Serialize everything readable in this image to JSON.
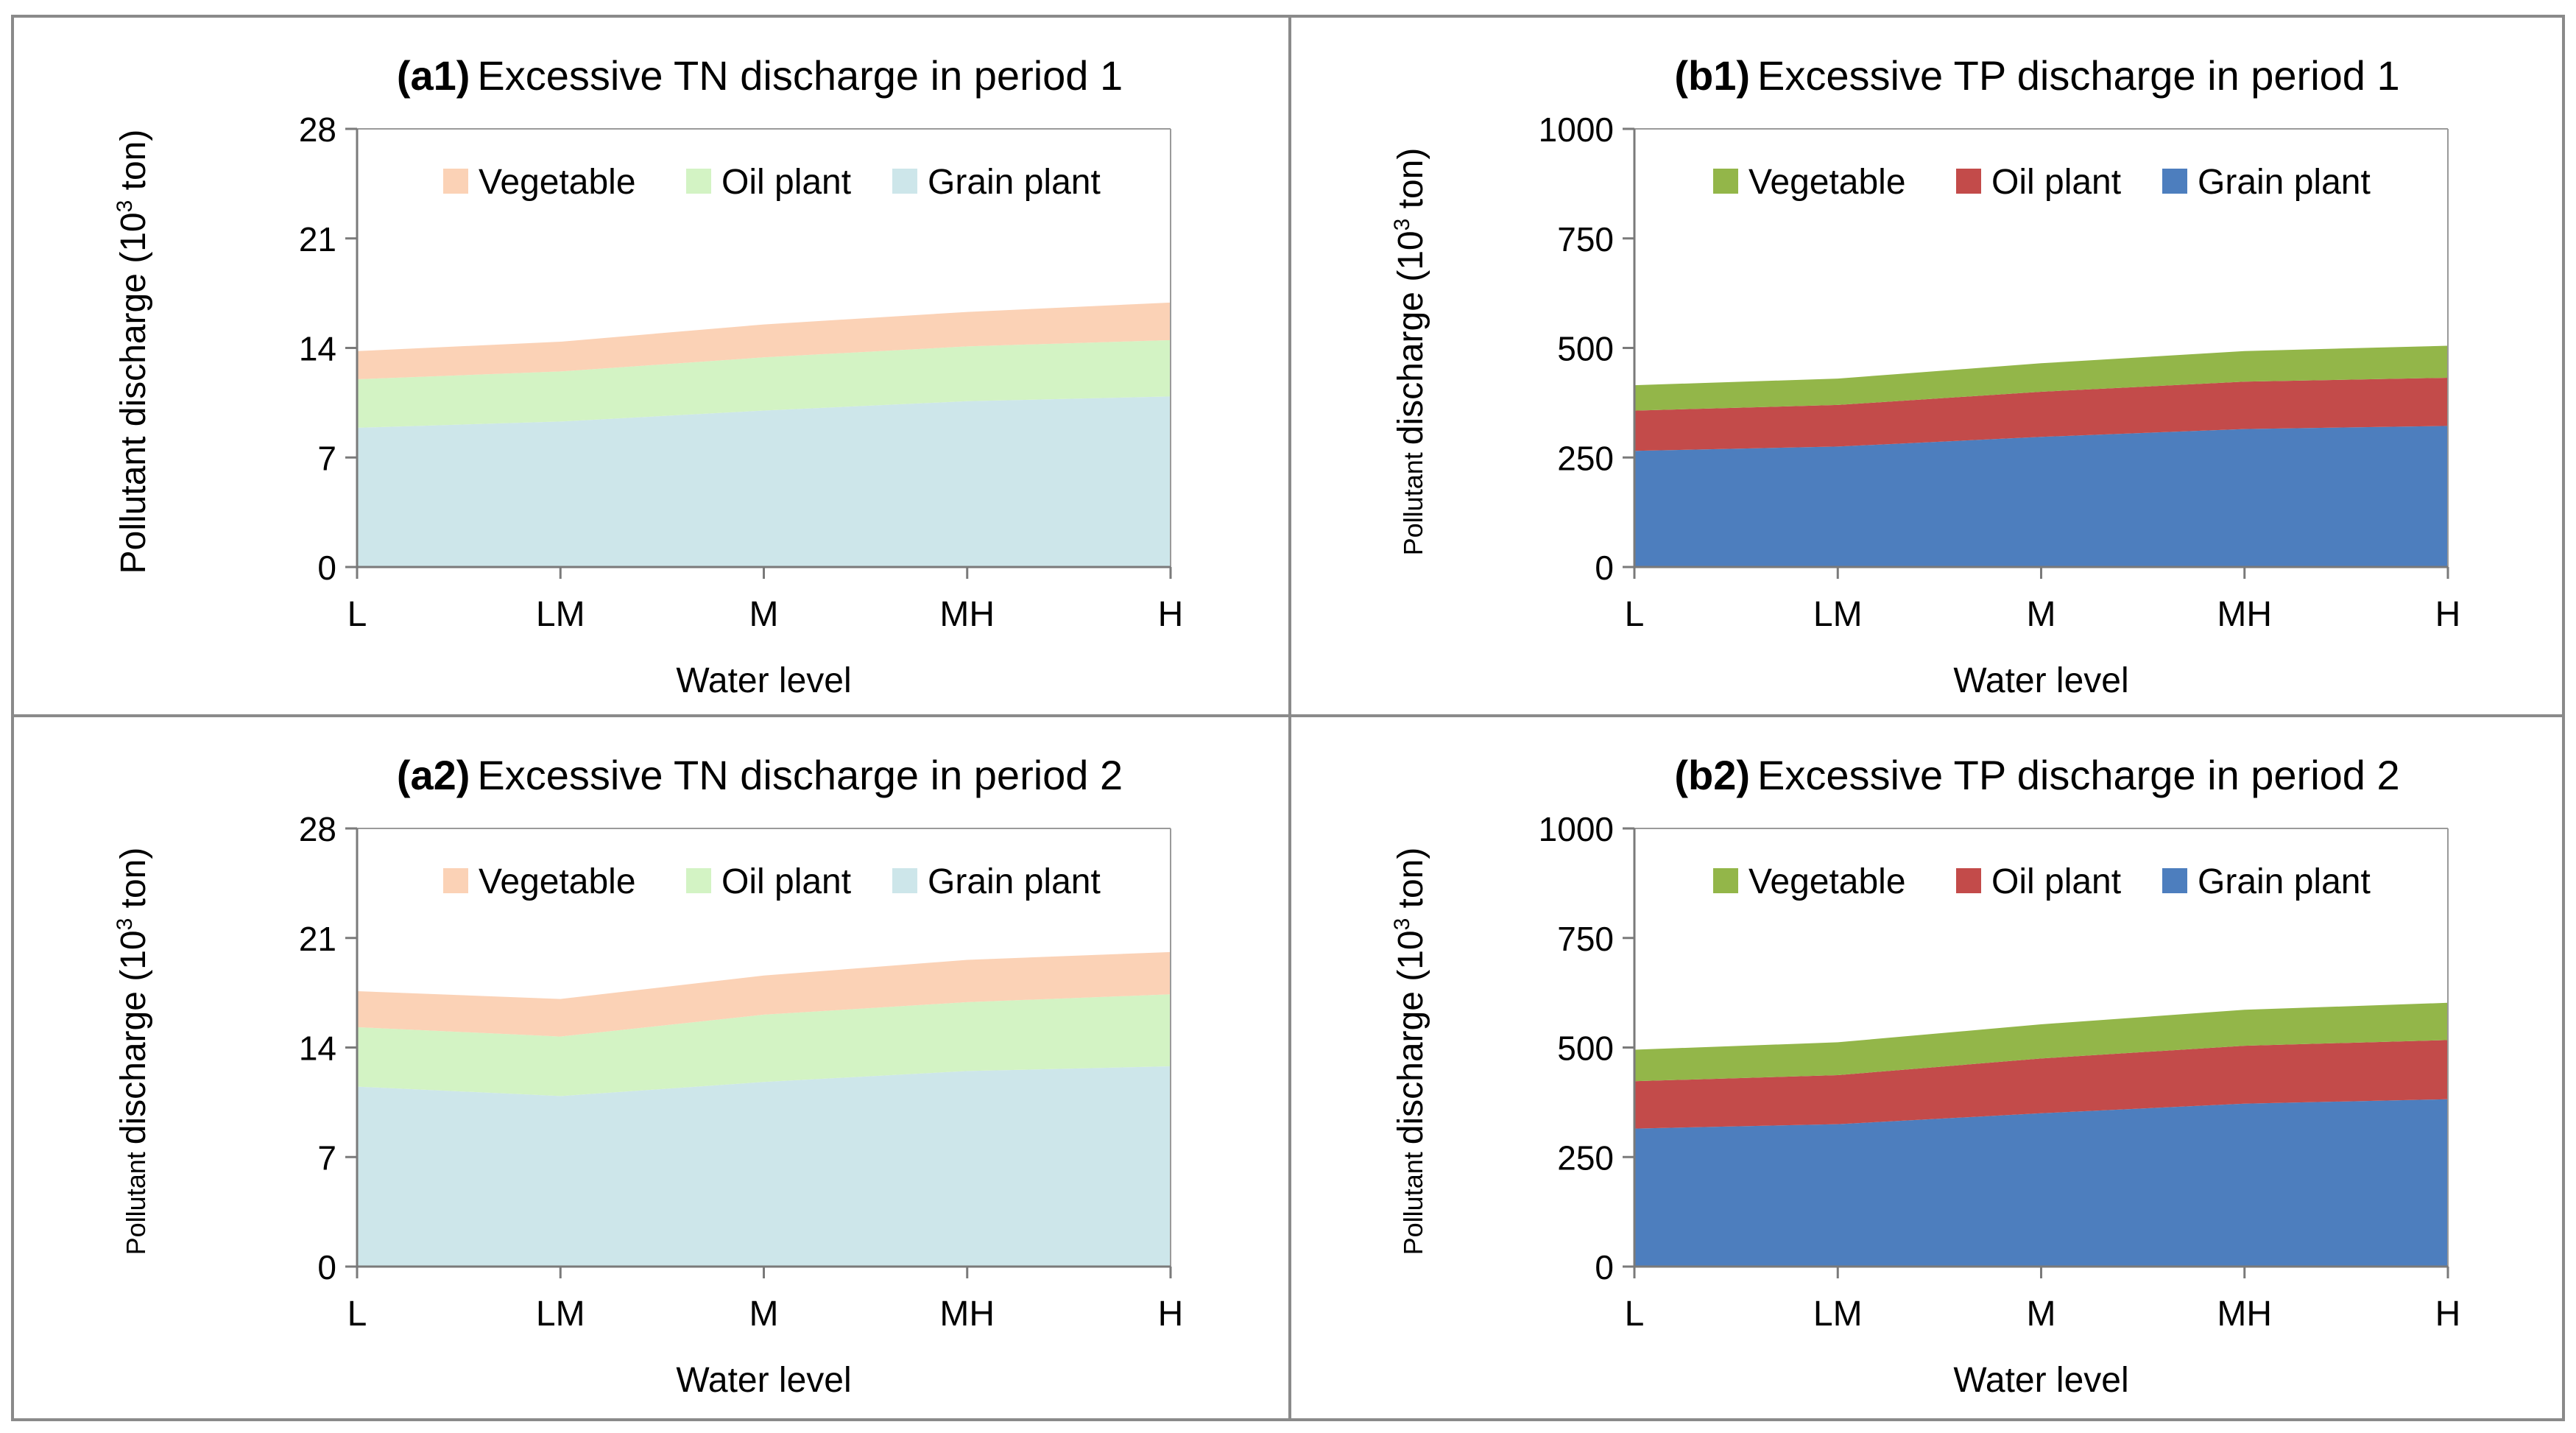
{
  "colors": {
    "green_palette": {
      "vegetable": "#fbd2b6",
      "oil": "#d3f3c4",
      "grain": "#cde6ea"
    },
    "bold_palette": {
      "vegetable": "#93b649",
      "oil": "#c34b4a",
      "grain": "#4d7ebe"
    },
    "frame": "#8a8a8a"
  },
  "chart_data": [
    {
      "id": "a1",
      "type": "area",
      "stacked": true,
      "title_prefix": "(a1)",
      "title": "Excessive TN discharge in period 1",
      "xlabel": "Water level",
      "ylabel_main": "Pollutant discharge",
      "ylabel_unit": "(10",
      "ylabel_sup": "3",
      "ylabel_tail": " ton)",
      "ylabel_small": false,
      "categories": [
        "L",
        "LM",
        "M",
        "MH",
        "H"
      ],
      "ylim": [
        0,
        28
      ],
      "yticks": [
        "0",
        "7",
        "14",
        "21",
        "28"
      ],
      "yticks_values": [
        0,
        7,
        14,
        21,
        28
      ],
      "palette": "green_palette",
      "series": [
        {
          "name": "Grain plant",
          "key": "grain",
          "values": [
            8.9,
            9.3,
            10.0,
            10.6,
            10.9
          ]
        },
        {
          "name": "Oil plant",
          "key": "oil",
          "values": [
            3.1,
            3.2,
            3.4,
            3.5,
            3.6
          ]
        },
        {
          "name": "Vegetable",
          "key": "vegetable",
          "values": [
            1.8,
            1.9,
            2.1,
            2.2,
            2.4
          ]
        }
      ],
      "legend_order": [
        "Vegetable",
        "Oil plant",
        "Grain plant"
      ]
    },
    {
      "id": "b1",
      "type": "area",
      "stacked": true,
      "title_prefix": "(b1)",
      "title": "Excessive TP discharge in period 1",
      "xlabel": "Water level",
      "ylabel_main": "discharge",
      "ylabel_prefix_small": "Pollutant",
      "ylabel_unit": "(10",
      "ylabel_sup": "3",
      "ylabel_tail": " ton)",
      "ylabel_small": true,
      "categories": [
        "L",
        "LM",
        "M",
        "MH",
        "H"
      ],
      "ylim": [
        0,
        1000
      ],
      "yticks": [
        "0",
        "250",
        "500",
        "750",
        "1000"
      ],
      "yticks_values": [
        0,
        250,
        500,
        750,
        1000
      ],
      "palette": "bold_palette",
      "series": [
        {
          "name": "Grain plant",
          "key": "grain",
          "values": [
            265,
            275,
            297,
            315,
            322
          ]
        },
        {
          "name": "Oil plant",
          "key": "oil",
          "values": [
            92,
            95,
            103,
            108,
            110
          ]
        },
        {
          "name": "Vegetable",
          "key": "vegetable",
          "values": [
            58,
            60,
            65,
            70,
            73
          ]
        }
      ],
      "legend_order": [
        "Vegetable",
        "Oil plant",
        "Grain plant"
      ]
    },
    {
      "id": "a2",
      "type": "area",
      "stacked": true,
      "title_prefix": "(a2)",
      "title": "Excessive TN discharge in period 2",
      "xlabel": "Water level",
      "ylabel_main": "discharge",
      "ylabel_prefix_small": "Pollutant",
      "ylabel_unit": "(10",
      "ylabel_sup": "3",
      "ylabel_tail": " ton)",
      "ylabel_small": true,
      "categories": [
        "L",
        "LM",
        "M",
        "MH",
        "H"
      ],
      "ylim": [
        0,
        28
      ],
      "yticks": [
        "0",
        "7",
        "14",
        "21",
        "28"
      ],
      "yticks_values": [
        0,
        7,
        14,
        21,
        28
      ],
      "palette": "green_palette",
      "series": [
        {
          "name": "Grain plant",
          "key": "grain",
          "values": [
            11.5,
            10.9,
            11.8,
            12.5,
            12.8
          ]
        },
        {
          "name": "Oil plant",
          "key": "oil",
          "values": [
            3.8,
            3.8,
            4.3,
            4.4,
            4.6
          ]
        },
        {
          "name": "Vegetable",
          "key": "vegetable",
          "values": [
            2.3,
            2.4,
            2.5,
            2.7,
            2.7
          ]
        }
      ],
      "legend_order": [
        "Vegetable",
        "Oil plant",
        "Grain plant"
      ]
    },
    {
      "id": "b2",
      "type": "area",
      "stacked": true,
      "title_prefix": "(b2)",
      "title": "Excessive TP discharge in period 2",
      "xlabel": "Water level",
      "ylabel_main": "discharge",
      "ylabel_prefix_small": "Pollutant",
      "ylabel_unit": "(10",
      "ylabel_sup": "3",
      "ylabel_tail": " ton)",
      "ylabel_small": true,
      "categories": [
        "L",
        "LM",
        "M",
        "MH",
        "H"
      ],
      "ylim": [
        0,
        1000
      ],
      "yticks": [
        "0",
        "250",
        "500",
        "750",
        "1000"
      ],
      "yticks_values": [
        0,
        250,
        500,
        750,
        1000
      ],
      "palette": "bold_palette",
      "series": [
        {
          "name": "Grain plant",
          "key": "grain",
          "values": [
            315,
            325,
            350,
            372,
            382
          ]
        },
        {
          "name": "Oil plant",
          "key": "oil",
          "values": [
            108,
            112,
            125,
            132,
            135
          ]
        },
        {
          "name": "Vegetable",
          "key": "vegetable",
          "values": [
            72,
            75,
            78,
            82,
            85
          ]
        }
      ],
      "legend_order": [
        "Vegetable",
        "Oil plant",
        "Grain plant"
      ]
    }
  ]
}
